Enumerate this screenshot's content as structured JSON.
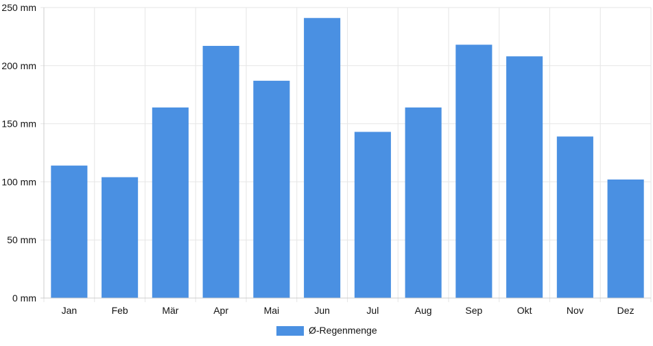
{
  "chart_data": {
    "type": "bar",
    "categories": [
      "Jan",
      "Feb",
      "Mär",
      "Apr",
      "Mai",
      "Jun",
      "Jul",
      "Aug",
      "Sep",
      "Okt",
      "Nov",
      "Dez"
    ],
    "series": [
      {
        "name": "Ø-Regenmenge",
        "values": [
          114,
          104,
          164,
          217,
          187,
          241,
          143,
          164,
          218,
          208,
          139,
          102
        ]
      }
    ],
    "ylim": [
      0,
      250
    ],
    "yticks": [
      0,
      50,
      100,
      150,
      200,
      250
    ],
    "y_unit": "mm",
    "grid": true,
    "legend": "bottom-center",
    "colors": {
      "bar": "#4a90e2",
      "grid": "#e6e6e6",
      "axis": "#cccccc"
    }
  }
}
